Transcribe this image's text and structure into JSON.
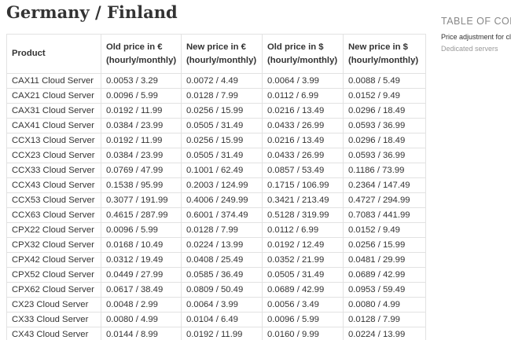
{
  "title": "Germany / Finland",
  "table": {
    "headers": [
      [
        "Product"
      ],
      [
        "Old price in €",
        "(hourly/monthly)"
      ],
      [
        "New price in €",
        "(hourly/monthly)"
      ],
      [
        "Old price in $",
        "(hourly/monthly)"
      ],
      [
        "New price in $",
        "(hourly/monthly)"
      ]
    ],
    "rows": [
      [
        "CAX11 Cloud Server",
        "0.0053 / 3.29",
        "0.0072 / 4.49",
        "0.0064 / 3.99",
        "0.0088 / 5.49"
      ],
      [
        "CAX21 Cloud Server",
        "0.0096 / 5.99",
        "0.0128 / 7.99",
        "0.0112 / 6.99",
        "0.0152 / 9.49"
      ],
      [
        "CAX31 Cloud Server",
        "0.0192 / 11.99",
        "0.0256 / 15.99",
        "0.0216 / 13.49",
        "0.0296 / 18.49"
      ],
      [
        "CAX41 Cloud Server",
        "0.0384 / 23.99",
        "0.0505 / 31.49",
        "0.0433 / 26.99",
        "0.0593 / 36.99"
      ],
      [
        "CCX13 Cloud Server",
        "0.0192 / 11.99",
        "0.0256 / 15.99",
        "0.0216 / 13.49",
        "0.0296 / 18.49"
      ],
      [
        "CCX23 Cloud Server",
        "0.0384 / 23.99",
        "0.0505 / 31.49",
        "0.0433 / 26.99",
        "0.0593 / 36.99"
      ],
      [
        "CCX33 Cloud Server",
        "0.0769 / 47.99",
        "0.1001 / 62.49",
        "0.0857 / 53.49",
        "0.1186 / 73.99"
      ],
      [
        "CCX43 Cloud Server",
        "0.1538 / 95.99",
        "0.2003 / 124.99",
        "0.1715 / 106.99",
        "0.2364 / 147.49"
      ],
      [
        "CCX53 Cloud Server",
        "0.3077 / 191.99",
        "0.4006 / 249.99",
        "0.3421 / 213.49",
        "0.4727 / 294.99"
      ],
      [
        "CCX63 Cloud Server",
        "0.4615 / 287.99",
        "0.6001 / 374.49",
        "0.5128 / 319.99",
        "0.7083 / 441.99"
      ],
      [
        "CPX22 Cloud Server",
        "0.0096 / 5.99",
        "0.0128 / 7.99",
        "0.0112 / 6.99",
        "0.0152 / 9.49"
      ],
      [
        "CPX32 Cloud Server",
        "0.0168 / 10.49",
        "0.0224 / 13.99",
        "0.0192 / 12.49",
        "0.0256 / 15.99"
      ],
      [
        "CPX42 Cloud Server",
        "0.0312 / 19.49",
        "0.0408 / 25.49",
        "0.0352 / 21.99",
        "0.0481 / 29.99"
      ],
      [
        "CPX52 Cloud Server",
        "0.0449 / 27.99",
        "0.0585 / 36.49",
        "0.0505 / 31.49",
        "0.0689 / 42.99"
      ],
      [
        "CPX62 Cloud Server",
        "0.0617 / 38.49",
        "0.0809 / 50.49",
        "0.0689 / 42.99",
        "0.0953 / 59.49"
      ],
      [
        "CX23 Cloud Server",
        "0.0048 / 2.99",
        "0.0064 / 3.99",
        "0.0056 / 3.49",
        "0.0080 / 4.99"
      ],
      [
        "CX33 Cloud Server",
        "0.0080 / 4.99",
        "0.0104 / 6.49",
        "0.0096 / 5.99",
        "0.0128 / 7.99"
      ],
      [
        "CX43 Cloud Server",
        "0.0144 / 8.99",
        "0.0192 / 11.99",
        "0.0160 / 9.99",
        "0.0224 / 13.99"
      ]
    ]
  },
  "sidebar": {
    "heading": "TABLE OF CONT",
    "items": [
      "Price adjustment for clo",
      "Dedicated servers"
    ]
  }
}
